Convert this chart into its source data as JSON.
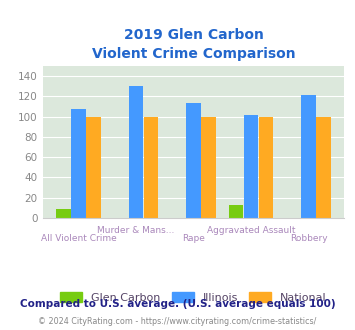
{
  "title_line1": "2019 Glen Carbon",
  "title_line2": "Violent Crime Comparison",
  "categories_bottom": [
    "All Violent Crime",
    "",
    "Rape",
    "",
    "Robbery"
  ],
  "categories_top": [
    "",
    "Murder & Mans...",
    "",
    "Aggravated Assault",
    ""
  ],
  "glen_carbon": [
    9,
    0,
    0,
    13,
    0
  ],
  "illinois": [
    108,
    130,
    113,
    102,
    121
  ],
  "national": [
    100,
    100,
    100,
    100,
    100
  ],
  "glen_carbon_color": "#77cc11",
  "illinois_color": "#4499ff",
  "national_color": "#ffaa22",
  "ylim": [
    0,
    150
  ],
  "yticks": [
    0,
    20,
    40,
    60,
    80,
    100,
    120,
    140
  ],
  "plot_bg": "#dce8dc",
  "title_color": "#2266cc",
  "xlabel_color": "#aa88bb",
  "legend_text_color": "#554466",
  "footer_note": "Compared to U.S. average. (U.S. average equals 100)",
  "copyright_text": "© 2024 CityRating.com - https://www.cityrating.com/crime-statistics/",
  "legend_labels": [
    "Glen Carbon",
    "Illinois",
    "National"
  ],
  "footer_color": "#222288",
  "copyright_color": "#888888",
  "copyright_link_color": "#4499ff"
}
